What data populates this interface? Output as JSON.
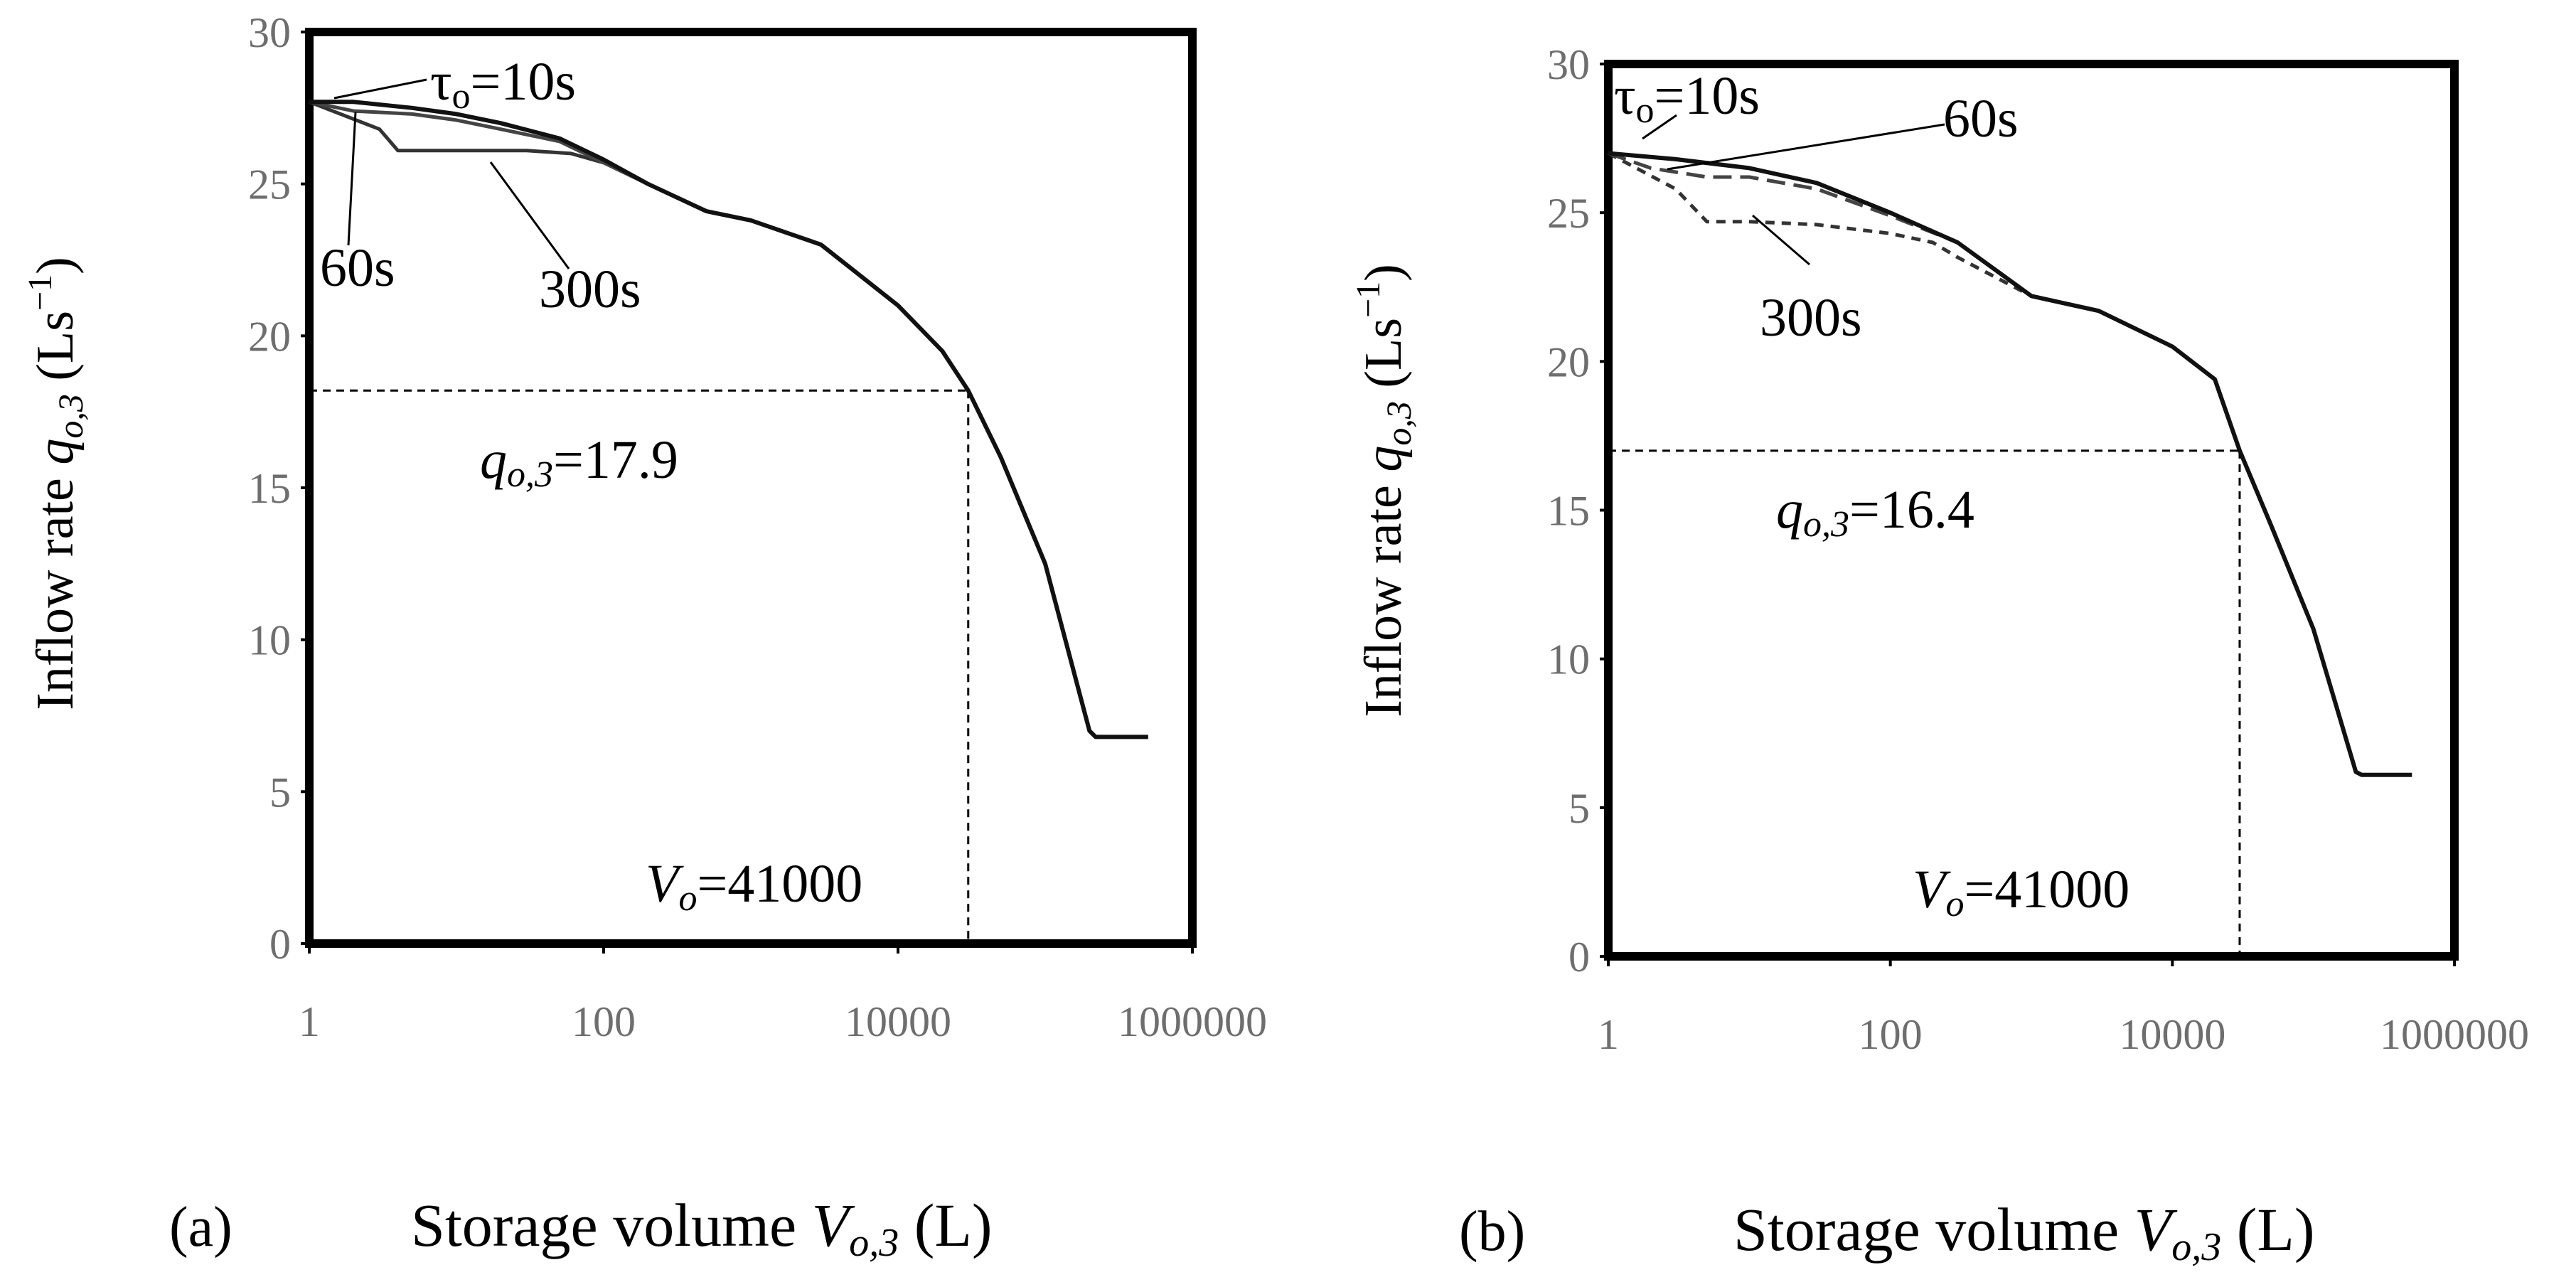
{
  "figure": {
    "panel_labels": [
      "(a)",
      "(b)"
    ],
    "xlabel": {
      "prefix": "Storage volume ",
      "var": "V",
      "sub": "o,3",
      "unit": " (L)"
    },
    "ylabel": {
      "prefix": "Inflow rate ",
      "var": "q",
      "sub": "o,3",
      "unit": " (Ls",
      "exp": "−1",
      "close": ")"
    }
  },
  "chart_data": [
    {
      "type": "line",
      "panel": "(a)",
      "x_scale": "log",
      "xlim": [
        1,
        1000000
      ],
      "ylim": [
        0,
        30
      ],
      "x_ticks": [
        1,
        100,
        10000,
        1000000
      ],
      "x_tick_labels": [
        "1",
        "100",
        "10000",
        "1000000"
      ],
      "y_ticks": [
        0,
        5,
        10,
        15,
        20,
        25,
        30
      ],
      "y_tick_labels": [
        "0",
        "5",
        "10",
        "15",
        "20",
        "25",
        "30"
      ],
      "series": [
        {
          "name": "τo=10s",
          "style": "solid",
          "x": [
            1,
            2,
            5,
            10,
            20,
            50,
            100,
            200,
            500,
            1000,
            3000,
            10000,
            20000,
            30000,
            50000,
            100000,
            200000,
            220000,
            500000
          ],
          "y": [
            27.7,
            27.7,
            27.5,
            27.3,
            27.0,
            26.5,
            25.8,
            25.0,
            24.1,
            23.8,
            23.0,
            21.0,
            19.5,
            18.2,
            16.0,
            12.5,
            7.0,
            6.8,
            6.8
          ]
        },
        {
          "name": "60s",
          "style": "solid",
          "x": [
            1,
            2,
            5,
            10,
            20,
            50,
            100,
            200,
            500,
            1000,
            3000,
            10000,
            20000,
            30000,
            50000,
            100000,
            200000,
            220000,
            500000
          ],
          "y": [
            27.7,
            27.4,
            27.3,
            27.1,
            26.8,
            26.4,
            25.7,
            25.0,
            24.1,
            23.8,
            23.0,
            21.0,
            19.5,
            18.2,
            16.0,
            12.5,
            7.0,
            6.8,
            6.8
          ]
        },
        {
          "name": "300s",
          "style": "solid",
          "x": [
            1,
            3,
            4,
            10,
            30,
            60,
            100,
            200,
            500,
            1000,
            3000,
            10000,
            20000,
            30000,
            50000,
            100000,
            200000,
            220000,
            500000
          ],
          "y": [
            27.7,
            26.8,
            26.1,
            26.1,
            26.1,
            26.0,
            25.7,
            25.0,
            24.1,
            23.8,
            23.0,
            21.0,
            19.5,
            18.2,
            16.0,
            12.5,
            7.0,
            6.8,
            6.8
          ]
        }
      ],
      "reference": {
        "x": 30000,
        "y": 18.2
      },
      "annotations": {
        "tau": {
          "sym": "τ",
          "sub": "o",
          "text": "=10s"
        },
        "s60": "60s",
        "s300": "300s",
        "q": {
          "var": "q",
          "sub": "o,3",
          "text": "=17.9"
        },
        "v": {
          "var": "V",
          "sub": "o",
          "text": "=41000"
        }
      }
    },
    {
      "type": "line",
      "panel": "(b)",
      "x_scale": "log",
      "xlim": [
        1,
        1000000
      ],
      "ylim": [
        0,
        30
      ],
      "x_ticks": [
        1,
        100,
        10000,
        1000000
      ],
      "x_tick_labels": [
        "1",
        "100",
        "10000",
        "1000000"
      ],
      "y_ticks": [
        0,
        5,
        10,
        15,
        20,
        25,
        30
      ],
      "y_tick_labels": [
        "0",
        "5",
        "10",
        "15",
        "20",
        "25",
        "30"
      ],
      "series": [
        {
          "name": "τo=10s",
          "style": "solid",
          "x": [
            1,
            3,
            10,
            30,
            100,
            300,
            1000,
            3000,
            10000,
            20000,
            30000,
            50000,
            100000,
            200000,
            220000,
            500000
          ],
          "y": [
            27.0,
            26.8,
            26.5,
            26.0,
            25.0,
            24.0,
            22.2,
            21.7,
            20.5,
            19.4,
            17.0,
            14.5,
            11.0,
            6.2,
            6.1,
            6.1
          ]
        },
        {
          "name": "60s",
          "style": "dashed",
          "x": [
            1,
            2,
            5,
            10,
            30,
            100,
            300,
            1000,
            3000,
            10000,
            20000,
            30000,
            50000,
            100000,
            200000,
            220000,
            500000
          ],
          "y": [
            27.0,
            26.5,
            26.2,
            26.2,
            25.8,
            24.9,
            24.0,
            22.2,
            21.7,
            20.5,
            19.4,
            17.0,
            14.5,
            11.0,
            6.2,
            6.1,
            6.1
          ]
        },
        {
          "name": "300s",
          "style": "dotted",
          "x": [
            1,
            3,
            5,
            10,
            30,
            100,
            200,
            300,
            1000,
            3000,
            10000,
            20000,
            30000,
            50000,
            100000,
            200000,
            220000,
            500000
          ],
          "y": [
            27.0,
            25.8,
            24.7,
            24.7,
            24.6,
            24.3,
            24.0,
            23.5,
            22.2,
            21.7,
            20.5,
            19.4,
            17.0,
            14.5,
            11.0,
            6.2,
            6.1,
            6.1
          ]
        }
      ],
      "reference": {
        "x": 30000,
        "y": 17.0
      },
      "annotations": {
        "tau": {
          "sym": "τ",
          "sub": "o",
          "text": "=10s"
        },
        "s60": "60s",
        "s300": "300s",
        "q": {
          "var": "q",
          "sub": "o,3",
          "text": "=16.4"
        },
        "v": {
          "var": "V",
          "sub": "o",
          "text": "=41000"
        }
      }
    }
  ]
}
